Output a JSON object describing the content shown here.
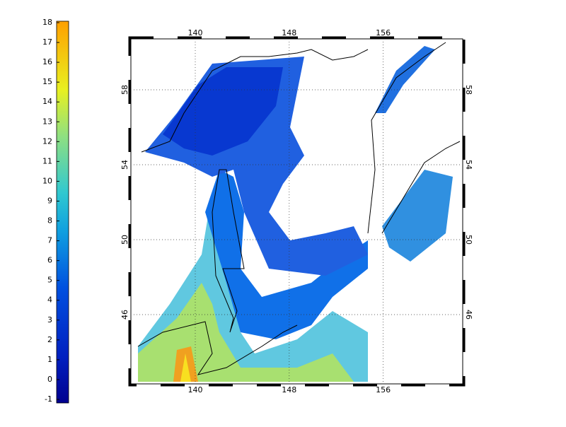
{
  "colorbar": {
    "ticks": [
      -1,
      0,
      1,
      2,
      3,
      4,
      5,
      6,
      7,
      8,
      9,
      10,
      11,
      12,
      13,
      14,
      15,
      16,
      17,
      18
    ]
  },
  "map": {
    "lon_ticks": [
      140,
      148,
      156
    ],
    "lat_ticks": [
      46,
      50,
      54,
      58
    ]
  }
}
